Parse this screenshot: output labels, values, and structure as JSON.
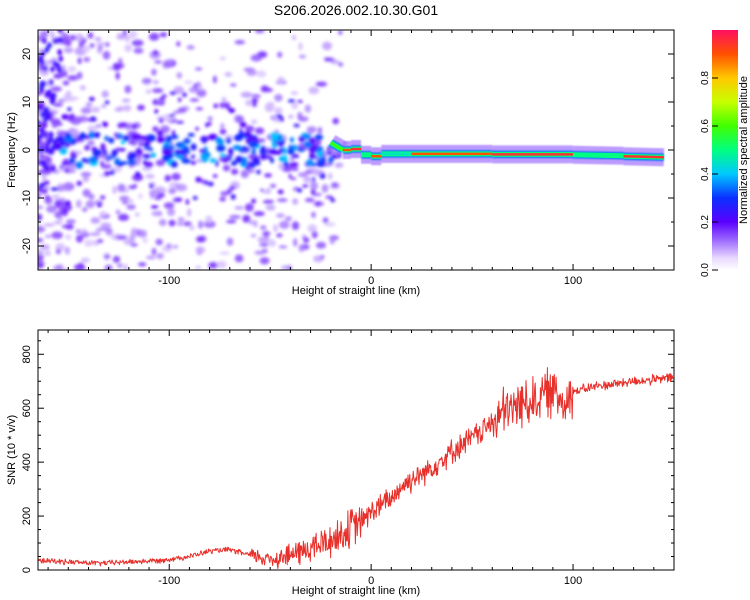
{
  "title": "S206.2026.002.10.30.G01",
  "colors": {
    "snr_line": "#e8302b",
    "axis": "#000000",
    "background": "#ffffff"
  },
  "chart_data": [
    {
      "type": "heatmap",
      "name": "spectrogram",
      "xlabel": "Height of straight line (km)",
      "ylabel": "Frequency (Hz)",
      "xlim": [
        -165,
        150
      ],
      "ylim": [
        -25,
        25
      ],
      "xticks": [
        -100,
        0,
        100
      ],
      "yticks": [
        -20,
        -10,
        0,
        10,
        20
      ],
      "colorbar": {
        "label": "Normalized spectral amplitude",
        "range": [
          0,
          1
        ],
        "ticks": [
          0.0,
          0.2,
          0.4,
          0.6,
          0.8
        ],
        "colormap": "rainbow"
      },
      "ridge_segments": [
        {
          "x0": -20,
          "x1": -14,
          "f0": 1.5,
          "f1": 0.0,
          "amp": 0.6
        },
        {
          "x0": -14,
          "x1": -10,
          "f0": 0.0,
          "f1": 0.0,
          "amp": 0.9
        },
        {
          "x0": -10,
          "x1": -5,
          "f0": 0.2,
          "f1": 0.2,
          "amp": 0.95
        },
        {
          "x0": -5,
          "x1": 0,
          "f0": -1.0,
          "f1": -1.0,
          "amp": 0.5
        },
        {
          "x0": 0,
          "x1": 5,
          "f0": -1.3,
          "f1": -1.3,
          "amp": 0.9
        },
        {
          "x0": 5,
          "x1": 20,
          "f0": -0.8,
          "f1": -0.8,
          "amp": 0.45
        },
        {
          "x0": 20,
          "x1": 60,
          "f0": -0.8,
          "f1": -0.8,
          "amp": 0.9
        },
        {
          "x0": 60,
          "x1": 100,
          "f0": -0.9,
          "f1": -0.9,
          "amp": 0.95
        },
        {
          "x0": 100,
          "x1": 125,
          "f0": -1.0,
          "f1": -1.2,
          "amp": 0.5
        },
        {
          "x0": 125,
          "x1": 145,
          "f0": -1.3,
          "f1": -1.5,
          "amp": 0.95
        }
      ]
    },
    {
      "type": "line",
      "name": "snr",
      "xlabel": "Height of straight line (km)",
      "ylabel": "SNR (10 * v/v)",
      "xlim": [
        -165,
        150
      ],
      "ylim": [
        0,
        890
      ],
      "xticks": [
        -100,
        0,
        100
      ],
      "yticks": [
        0,
        200,
        400,
        600,
        800
      ],
      "series": [
        {
          "name": "SNR",
          "x": [
            -165,
            -150,
            -135,
            -120,
            -105,
            -90,
            -80,
            -70,
            -60,
            -50,
            -40,
            -30,
            -20,
            -15,
            -10,
            -5,
            0,
            5,
            10,
            15,
            20,
            30,
            40,
            50,
            60,
            65,
            70,
            75,
            80,
            85,
            90,
            95,
            100,
            110,
            120,
            130,
            140,
            150
          ],
          "y": [
            35,
            30,
            25,
            30,
            35,
            50,
            70,
            75,
            55,
            40,
            55,
            80,
            110,
            130,
            155,
            180,
            215,
            240,
            265,
            310,
            335,
            380,
            440,
            490,
            545,
            580,
            600,
            620,
            630,
            650,
            660,
            630,
            660,
            680,
            690,
            700,
            705,
            715
          ]
        }
      ]
    }
  ]
}
